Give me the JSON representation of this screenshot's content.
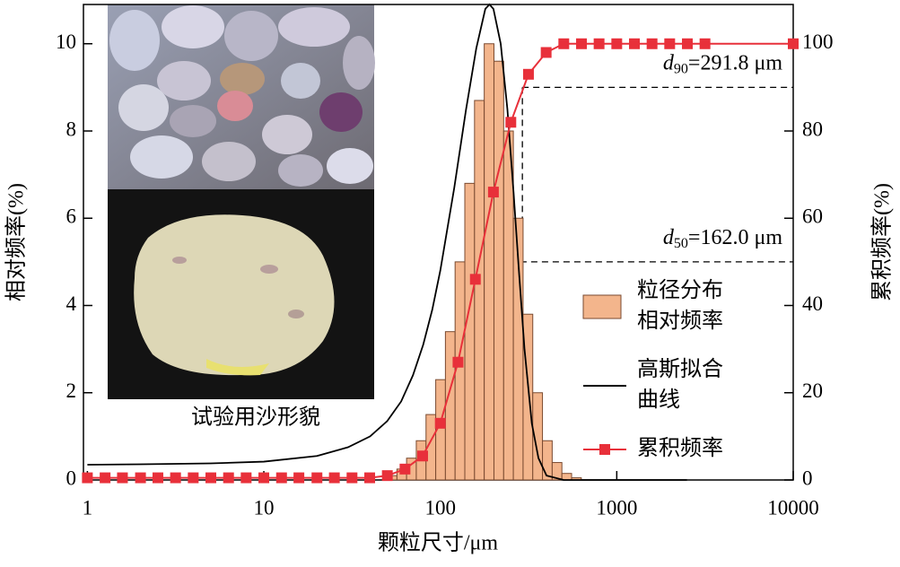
{
  "chart_data": {
    "type": "histogram",
    "x_label": "颗粒尺寸/μm",
    "y_label": "相对频率(%)",
    "y2_label": "累积频率(%)",
    "xscale": "log",
    "xlim": [
      0.95,
      10000
    ],
    "xticks": [
      1,
      10,
      100,
      1000,
      10000
    ],
    "ylim": [
      0,
      10.9
    ],
    "yticks": [
      0,
      2,
      4,
      6,
      8,
      10
    ],
    "y2lim": [
      0,
      109
    ],
    "y2ticks": [
      0,
      20,
      40,
      60,
      80,
      100
    ],
    "bins": [
      50,
      56.8,
      64.4,
      73.1,
      83.0,
      94.2,
      106.9,
      121.3,
      137.7,
      156.3,
      177.4,
      201.4,
      228.6,
      259.4,
      294.5,
      334.2,
      379.4,
      430.6,
      488.7,
      554.7,
      629.6
    ],
    "series": [
      {
        "name": "粒径分布相对频率",
        "type": "histogram",
        "color": "#f3b58c",
        "values": [
          0.1,
          0.25,
          0.5,
          0.9,
          1.5,
          2.3,
          3.4,
          5.0,
          6.8,
          8.7,
          10.0,
          9.6,
          8.0,
          6.0,
          3.8,
          2.0,
          0.9,
          0.4,
          0.15,
          0.05
        ]
      },
      {
        "name": "高斯拟合曲线",
        "type": "line",
        "color": "#000000",
        "x": [
          1,
          2,
          5,
          10,
          20,
          30,
          40,
          50,
          60,
          70,
          80,
          90,
          100,
          120,
          140,
          160,
          180,
          190,
          200,
          220,
          240,
          260,
          280,
          300,
          330,
          360,
          400,
          500,
          1000,
          2500
        ],
        "values": [
          0.35,
          0.36,
          0.38,
          0.42,
          0.55,
          0.75,
          1.0,
          1.35,
          1.8,
          2.4,
          3.1,
          3.9,
          4.8,
          6.7,
          8.5,
          9.9,
          10.8,
          10.9,
          10.8,
          10.0,
          8.5,
          6.6,
          4.7,
          3.0,
          1.3,
          0.5,
          0.1,
          0,
          0,
          0
        ]
      },
      {
        "name": "累积频率",
        "type": "line",
        "marker": "square",
        "color": "#e8303a",
        "axis": "y2",
        "x": [
          1,
          1.26,
          1.58,
          2,
          2.51,
          3.16,
          3.98,
          5.01,
          6.31,
          7.94,
          10,
          12.6,
          15.8,
          20,
          25.1,
          31.6,
          39.8,
          50.1,
          63.1,
          79.4,
          100,
          126,
          158,
          200,
          251,
          316,
          398,
          501,
          631,
          794,
          1000,
          1259,
          1585,
          1995,
          2512,
          3162,
          10000
        ],
        "values": [
          0.5,
          0.5,
          0.5,
          0.5,
          0.5,
          0.5,
          0.5,
          0.5,
          0.5,
          0.5,
          0.5,
          0.5,
          0.5,
          0.5,
          0.5,
          0.5,
          0.5,
          1.0,
          2.5,
          5.5,
          13,
          27,
          46,
          66,
          82,
          93,
          98,
          100,
          100,
          100,
          100,
          100,
          100,
          100,
          100,
          100,
          100
        ]
      }
    ],
    "annotations": [
      {
        "symbol": "d",
        "subscript": "90",
        "text": "=291.8 μm",
        "x": 291.8,
        "y": 90
      },
      {
        "symbol": "d",
        "subscript": "50",
        "text": "=162.0 μm",
        "x": 162.0,
        "y": 50
      }
    ]
  },
  "inset": {
    "caption": "试验用沙形貌"
  }
}
